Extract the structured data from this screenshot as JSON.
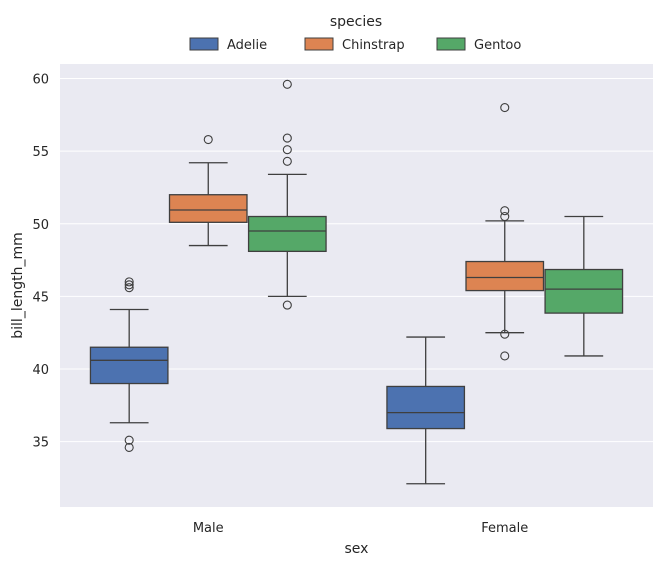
{
  "chart_data": {
    "type": "box",
    "xlabel": "sex",
    "ylabel": "bill_length_mm",
    "categories": [
      "Male",
      "Female"
    ],
    "ylim": [
      30.5,
      61
    ],
    "yticks": [
      35,
      40,
      45,
      50,
      55,
      60
    ],
    "grid": true,
    "legend": {
      "title": "species",
      "placement": "top-center",
      "entries": [
        "Adelie",
        "Chinstrap",
        "Gentoo"
      ]
    },
    "series": [
      {
        "name": "Adelie",
        "color": "#4c72b0",
        "boxes": [
          {
            "category": "Male",
            "whisker_low": 36.3,
            "q1": 39.0,
            "median": 40.6,
            "q3": 41.5,
            "whisker_high": 44.1,
            "outliers": [
              46.0,
              45.8,
              45.6,
              35.1,
              34.6
            ]
          },
          {
            "category": "Female",
            "whisker_low": 32.1,
            "q1": 35.9,
            "median": 37.0,
            "q3": 38.8,
            "whisker_high": 42.2,
            "outliers": []
          }
        ]
      },
      {
        "name": "Chinstrap",
        "color": "#dd8452",
        "boxes": [
          {
            "category": "Male",
            "whisker_low": 48.5,
            "q1": 50.1,
            "median": 50.95,
            "q3": 52.0,
            "whisker_high": 54.2,
            "outliers": [
              55.8
            ]
          },
          {
            "category": "Female",
            "whisker_low": 42.5,
            "q1": 45.4,
            "median": 46.3,
            "q3": 47.4,
            "whisker_high": 50.2,
            "outliers": [
              58.0,
              50.9,
              50.5,
              42.4,
              40.9
            ]
          }
        ]
      },
      {
        "name": "Gentoo",
        "color": "#55a868",
        "boxes": [
          {
            "category": "Male",
            "whisker_low": 45.0,
            "q1": 48.1,
            "median": 49.5,
            "q3": 50.5,
            "whisker_high": 53.4,
            "outliers": [
              59.6,
              55.9,
              55.1,
              54.3,
              44.4
            ]
          },
          {
            "category": "Female",
            "whisker_low": 40.9,
            "q1": 43.85,
            "median": 45.5,
            "q3": 46.85,
            "whisker_high": 50.5,
            "outliers": []
          }
        ]
      }
    ]
  }
}
